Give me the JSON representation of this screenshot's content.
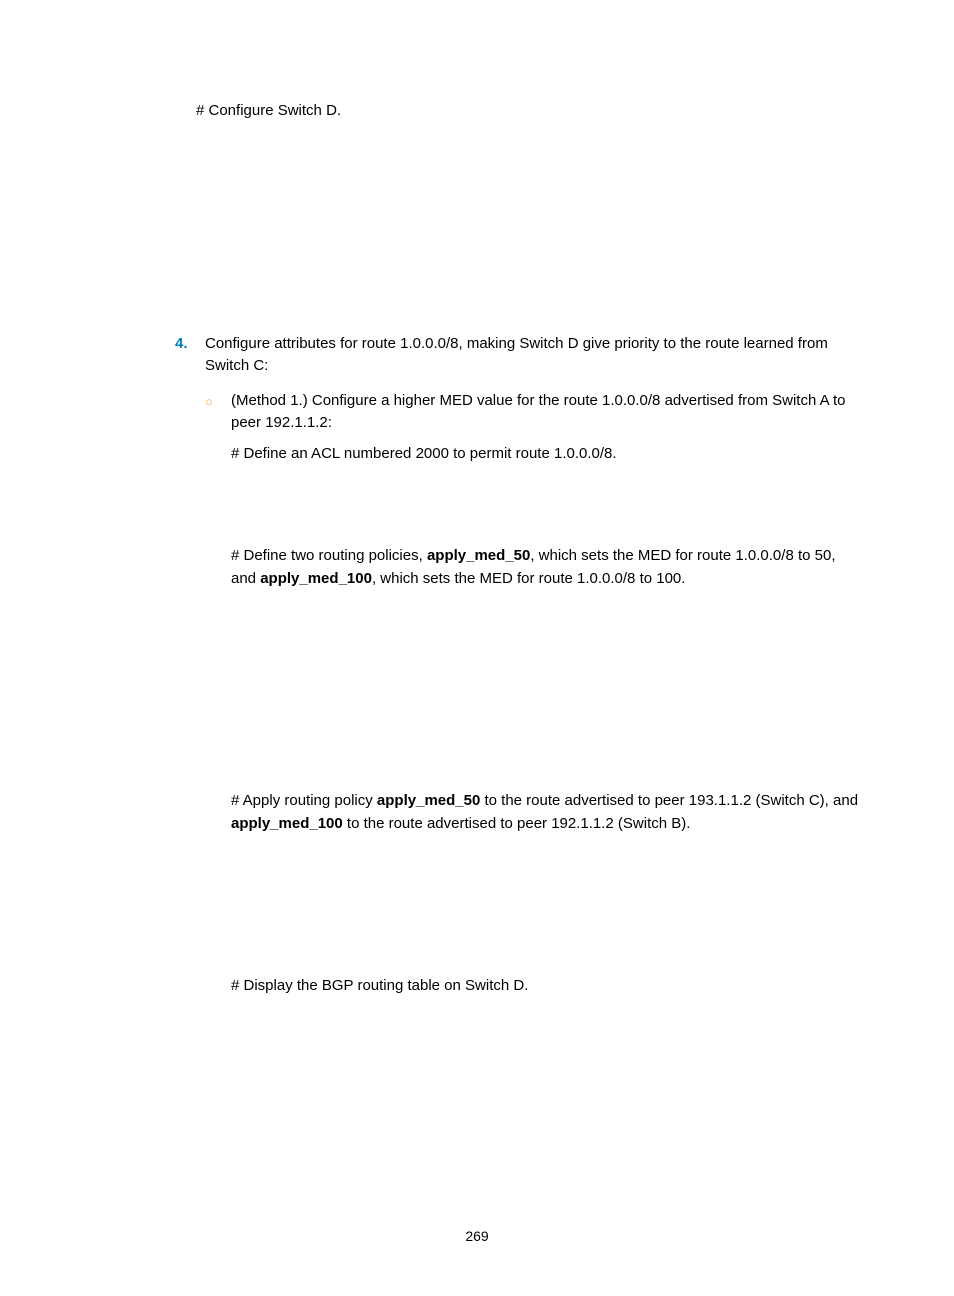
{
  "font": {
    "body_size_pt": 11,
    "color": "#000000",
    "accent_color": "#007dba",
    "marker_color": "#e8a33d"
  },
  "page_number": "269",
  "p_configure_d": "# Configure Switch D.",
  "step4": {
    "num": "4.",
    "text": "Configure attributes for route 1.0.0.0/8, making Switch D give priority to the route learned from Switch C:"
  },
  "method1": {
    "marker": "○",
    "text": "(Method 1.) Configure a higher MED value for the route 1.0.0.0/8 advertised from Switch A to peer 192.1.1.2:"
  },
  "p_acl": "# Define an ACL numbered 2000 to permit route 1.0.0.0/8.",
  "p_define_policies_pre": "# Define two routing policies, ",
  "bold_apply_med_50": "apply_med_50",
  "p_define_policies_mid1": ", which sets the MED for route 1.0.0.0/8 to 50, and ",
  "bold_apply_med_100": "apply_med_100",
  "p_define_policies_mid2": ", which sets the MED for route 1.0.0.0/8 to 100.",
  "p_apply_pre": "# Apply routing policy ",
  "p_apply_mid1": " to the route advertised to peer 193.1.1.2 (Switch C), and ",
  "p_apply_mid2": " to the route advertised to peer 192.1.1.2 (Switch B).",
  "p_display": "# Display the BGP routing table on Switch D."
}
